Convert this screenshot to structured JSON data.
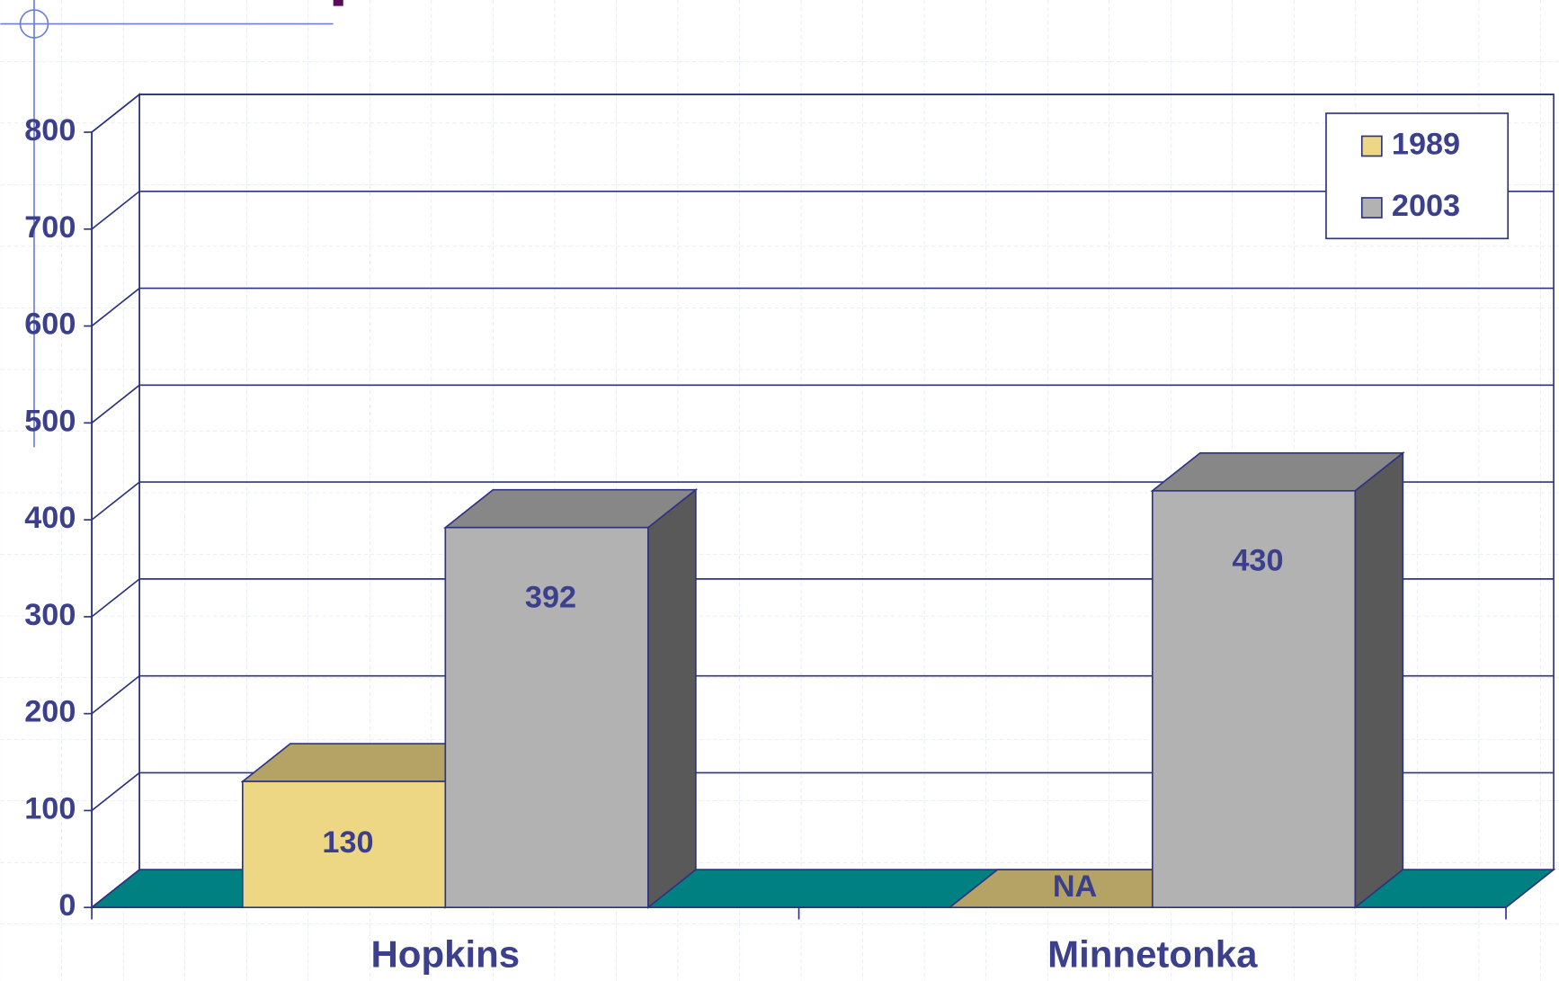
{
  "chart_data": {
    "type": "bar3d",
    "categories": [
      "Hopkins",
      "Minnetonka"
    ],
    "series": [
      {
        "name": "1989",
        "color": "#edd785",
        "values": [
          130,
          null
        ],
        "value_labels": [
          "130",
          "NA"
        ]
      },
      {
        "name": "2003",
        "color": "#b2b2b2",
        "values": [
          392,
          430
        ]
      }
    ],
    "ylim": [
      0,
      800
    ],
    "yticks": [
      0,
      100,
      200,
      300,
      400,
      500,
      600,
      700,
      800
    ],
    "grid": true,
    "floor_color": "#008080",
    "legend": "top-right"
  }
}
